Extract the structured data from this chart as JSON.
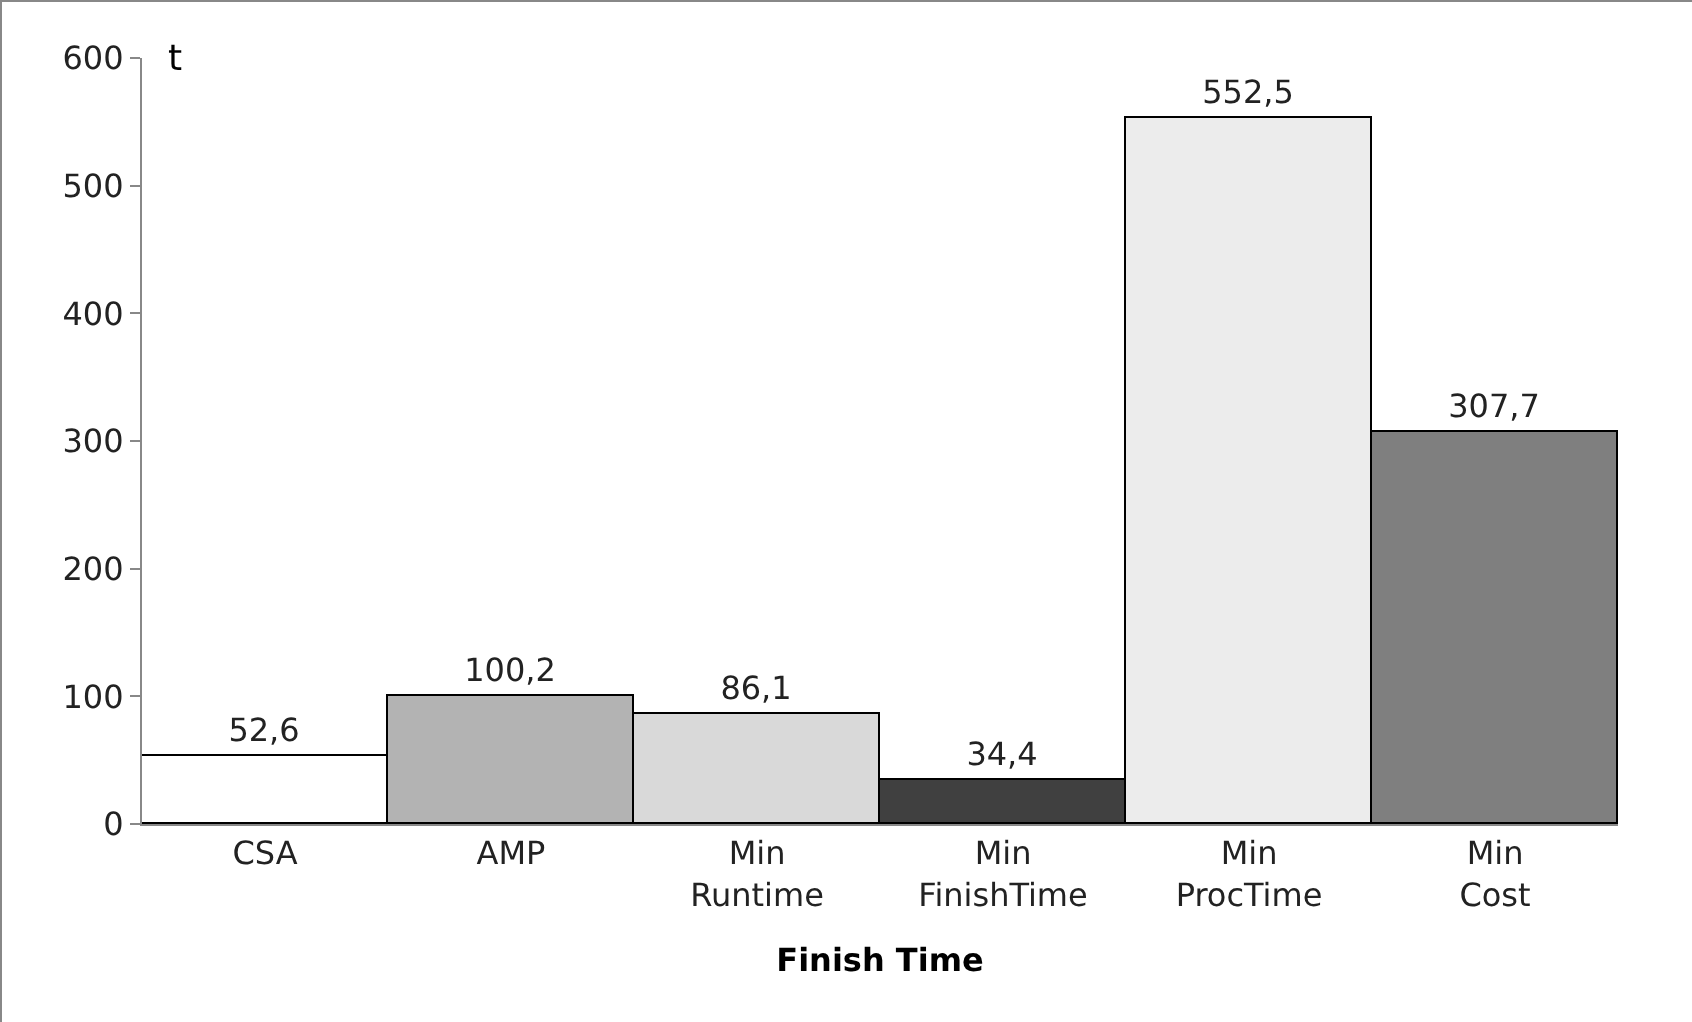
{
  "chart_data": {
    "type": "bar",
    "xlabel": "Finish Time",
    "ylabel": "t",
    "categories": [
      "CSA",
      "AMP",
      "Min Runtime",
      "Min FinishTime",
      "Min ProcTime",
      "Min Cost"
    ],
    "values": [
      52.6,
      100.2,
      86.1,
      34.4,
      552.5,
      307.7
    ],
    "value_labels": [
      "52,6",
      "100,2",
      "86,1",
      "34,4",
      "552,5",
      "307,7"
    ],
    "colors": [
      "#ffffff",
      "#b3b3b3",
      "#d9d9d9",
      "#404040",
      "#ececec",
      "#7f7f7f"
    ],
    "ylim": [
      0,
      600
    ],
    "yticks": [
      0,
      100,
      200,
      300,
      400,
      500,
      600
    ],
    "grid": false,
    "legend": false
  }
}
